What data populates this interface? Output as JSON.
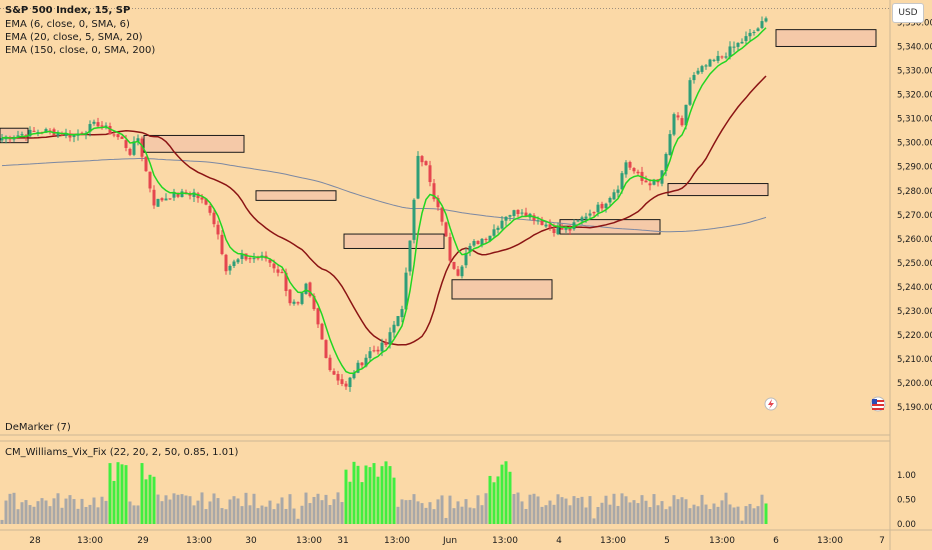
{
  "legend": {
    "title": "S&P 500 Index, 15, SP",
    "ema1": "EMA (6, close, 0, SMA, 6)",
    "ema2": "EMA (20, close, 5, SMA, 20)",
    "ema3": "EMA (150, close, 0, SMA, 200)"
  },
  "currency": "USD",
  "panes": {
    "demarker": "DeMarker (7)",
    "vix": "CM_Williams_Vix_Fix (22, 20, 2, 50, 0.85, 1.01)"
  },
  "price_axis": [
    "5,350.00",
    "5,340.00",
    "5,330.00",
    "5,320.00",
    "5,310.00",
    "5,300.00",
    "5,290.00",
    "5,280.00",
    "5,270.00",
    "5,260.00",
    "5,250.00",
    "5,240.00",
    "5,230.00",
    "5,220.00",
    "5,210.00",
    "5,200.00",
    "5,190.00"
  ],
  "vix_axis": [
    "1.00",
    "0.50",
    "0.00"
  ],
  "time_axis": [
    "28",
    "13:00",
    "29",
    "13:00",
    "30",
    "13:00",
    "31",
    "13:00",
    "Jun",
    "13:00",
    "4",
    "13:00",
    "5",
    "13:00",
    "6",
    "13:00",
    "7"
  ],
  "colors": {
    "background": "#fbd9a7",
    "up": "#2e9e78",
    "down": "#e5464f",
    "ema_fast": "#22d622",
    "ema_mid": "#8b1414",
    "ema_slow": "#7b88a3",
    "zone_fill": "#f5c9a8",
    "vix_normal": "#a8a8a8",
    "vix_spike": "#40ee40"
  },
  "chart_data": {
    "type": "candlestick",
    "title": "S&P 500 Index, 15, SP",
    "yrange": [
      5188,
      5356
    ],
    "x_labels": [
      "28",
      "13:00",
      "29",
      "13:00",
      "30",
      "13:00",
      "31",
      "13:00",
      "Jun",
      "13:00",
      "4",
      "13:00",
      "5",
      "13:00",
      "6",
      "13:00",
      "7"
    ],
    "anchors": [
      [
        0,
        5302
      ],
      [
        10,
        5305
      ],
      [
        18,
        5303
      ],
      [
        24,
        5308
      ],
      [
        30,
        5301
      ],
      [
        32,
        5296
      ],
      [
        34,
        5302
      ],
      [
        36,
        5288
      ],
      [
        38,
        5275
      ],
      [
        42,
        5278
      ],
      [
        48,
        5279
      ],
      [
        52,
        5272
      ],
      [
        54,
        5262
      ],
      [
        56,
        5248
      ],
      [
        60,
        5252
      ],
      [
        66,
        5252
      ],
      [
        70,
        5245
      ],
      [
        72,
        5234
      ],
      [
        74,
        5232
      ],
      [
        76,
        5240
      ],
      [
        78,
        5230
      ],
      [
        82,
        5206
      ],
      [
        86,
        5198
      ],
      [
        88,
        5205
      ],
      [
        92,
        5213
      ],
      [
        96,
        5216
      ],
      [
        100,
        5232
      ],
      [
        102,
        5258
      ],
      [
        104,
        5296
      ],
      [
        106,
        5290
      ],
      [
        108,
        5276
      ],
      [
        110,
        5268
      ],
      [
        112,
        5252
      ],
      [
        114,
        5246
      ],
      [
        116,
        5254
      ],
      [
        118,
        5258
      ],
      [
        122,
        5262
      ],
      [
        126,
        5270
      ],
      [
        130,
        5272
      ],
      [
        134,
        5268
      ],
      [
        138,
        5264
      ],
      [
        142,
        5264
      ],
      [
        146,
        5270
      ],
      [
        150,
        5274
      ],
      [
        154,
        5282
      ],
      [
        156,
        5292
      ],
      [
        160,
        5284
      ],
      [
        164,
        5283
      ],
      [
        166,
        5294
      ],
      [
        168,
        5312
      ],
      [
        170,
        5306
      ],
      [
        172,
        5326
      ],
      [
        176,
        5332
      ],
      [
        180,
        5336
      ],
      [
        184,
        5341
      ],
      [
        188,
        5346
      ],
      [
        191,
        5351
      ]
    ],
    "series": [
      {
        "name": "EMA (6, close, 0, SMA, 6)",
        "period": 6
      },
      {
        "name": "EMA (20, close, 5, SMA, 20)",
        "period": 20,
        "offset": 5
      },
      {
        "name": "EMA (150, close, 0, SMA, 200)",
        "period": 150
      }
    ],
    "zones": [
      {
        "y": [
          5300,
          5306
        ],
        "x": [
          0,
          6
        ]
      },
      {
        "y": [
          5296,
          5303
        ],
        "x": [
          36,
          60
        ]
      },
      {
        "y": [
          5276,
          5280
        ],
        "x": [
          64,
          83
        ]
      },
      {
        "y": [
          5256,
          5262
        ],
        "x": [
          86,
          110
        ]
      },
      {
        "y": [
          5235,
          5243
        ],
        "x": [
          113,
          137
        ]
      },
      {
        "y": [
          5262,
          5268
        ],
        "x": [
          140,
          164
        ]
      },
      {
        "y": [
          5278,
          5283
        ],
        "x": [
          167,
          191
        ]
      },
      {
        "y": [
          5340,
          5347
        ],
        "x": [
          194,
          218
        ]
      }
    ],
    "vix_range": [
      0,
      1.35
    ]
  }
}
